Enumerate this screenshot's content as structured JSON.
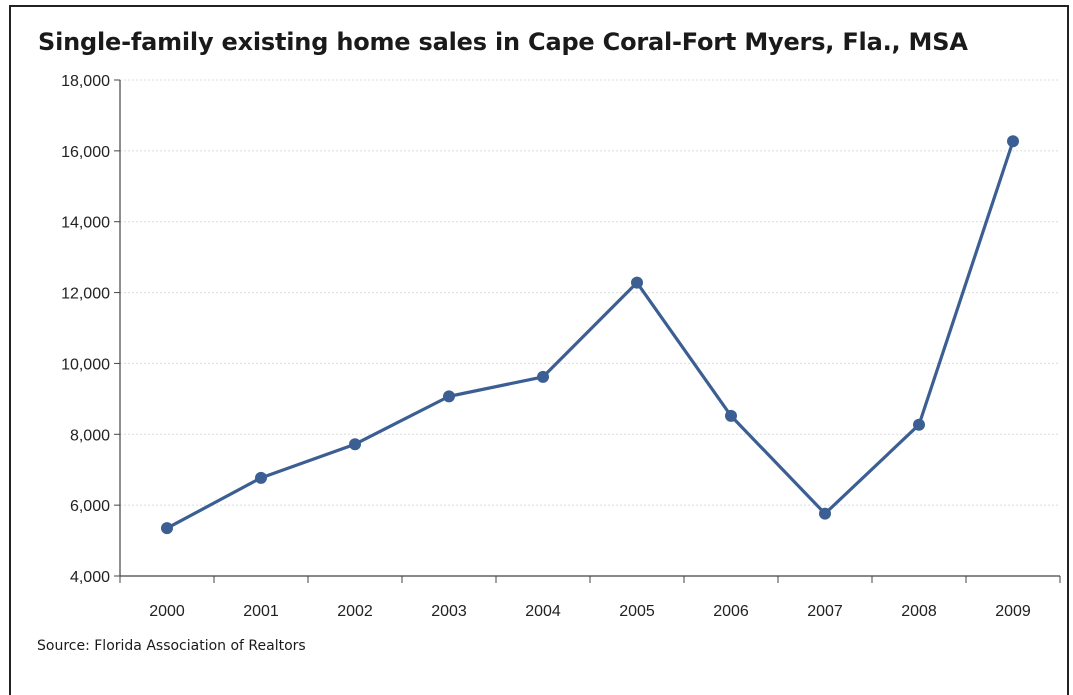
{
  "chart_data": {
    "type": "line",
    "title": "Single-family existing home sales in Cape Coral-Fort Myers, Fla., MSA",
    "source": "Source: Florida Association of Realtors",
    "categories": [
      "2000",
      "2001",
      "2002",
      "2003",
      "2004",
      "2005",
      "2006",
      "2007",
      "2008",
      "2009"
    ],
    "series": [
      {
        "values": [
          5350,
          6770,
          7720,
          9070,
          9620,
          12280,
          8520,
          5760,
          8270,
          16270
        ]
      }
    ],
    "ylim": [
      4000,
      18000
    ],
    "yticks": [
      4000,
      6000,
      8000,
      10000,
      12000,
      14000,
      16000,
      18000
    ],
    "ytick_labels": [
      "4,000",
      "6,000",
      "8,000",
      "10,000",
      "12,000",
      "14,000",
      "16,000",
      "18,000"
    ],
    "grid": true,
    "line_color": "#3b5f93",
    "xlabel": "",
    "ylabel": ""
  }
}
